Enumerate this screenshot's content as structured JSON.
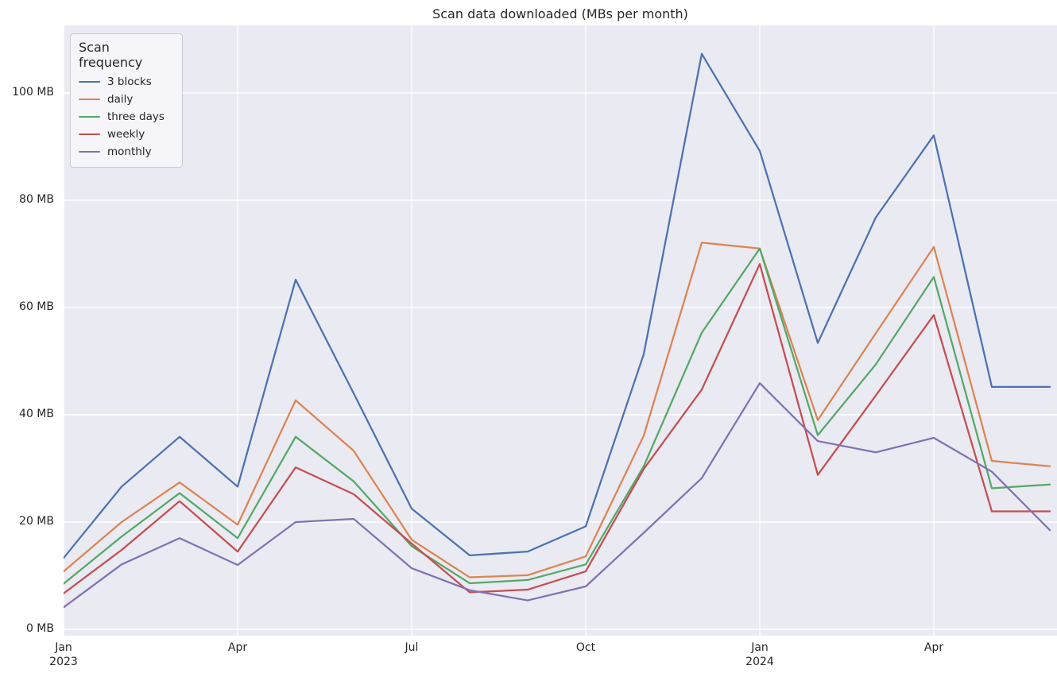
{
  "chart": {
    "title": "Scan data downloaded (MBs per month)",
    "legend_title": "Scan frequency",
    "y_ticks": [
      "0 MB",
      "20 MB",
      "40 MB",
      "60 MB",
      "80 MB",
      "100 MB"
    ]
  },
  "chart_data": {
    "type": "line",
    "title": "Scan data downloaded (MBs per month)",
    "xlabel": "",
    "ylabel": "",
    "x": [
      "2023-01",
      "2023-02",
      "2023-03",
      "2023-04",
      "2023-05",
      "2023-06",
      "2023-07",
      "2023-08",
      "2023-09",
      "2023-10",
      "2023-11",
      "2023-12",
      "2024-01",
      "2024-02",
      "2024-03",
      "2024-04",
      "2024-05",
      "2024-06"
    ],
    "series": [
      {
        "name": "3 blocks",
        "color": "#4c72b0",
        "values": [
          13.3,
          26.6,
          35.9,
          26.6,
          65.2,
          44.0,
          22.5,
          13.8,
          14.5,
          19.2,
          51.3,
          107.3,
          89.2,
          53.4,
          76.8,
          92.1,
          45.2,
          45.2
        ]
      },
      {
        "name": "daily",
        "color": "#dd8452",
        "values": [
          10.8,
          20.0,
          27.4,
          19.5,
          42.7,
          33.3,
          16.7,
          9.7,
          10.1,
          13.6,
          36.1,
          72.1,
          71.0,
          39.0,
          55.2,
          71.3,
          31.4,
          30.4
        ]
      },
      {
        "name": "three days",
        "color": "#55a868",
        "values": [
          8.5,
          17.3,
          25.4,
          17.0,
          35.9,
          27.6,
          15.5,
          8.6,
          9.2,
          12.1,
          30.4,
          55.3,
          71.0,
          36.2,
          49.4,
          65.7,
          26.3,
          27.0
        ]
      },
      {
        "name": "weekly",
        "color": "#c44e52",
        "values": [
          6.7,
          14.8,
          23.9,
          14.5,
          30.2,
          25.2,
          16.0,
          6.9,
          7.4,
          10.8,
          29.9,
          44.7,
          68.1,
          28.8,
          43.6,
          58.6,
          22.0,
          22.0
        ]
      },
      {
        "name": "monthly",
        "color": "#8172b3",
        "values": [
          4.1,
          12.1,
          17.0,
          12.0,
          20.0,
          20.6,
          11.4,
          7.3,
          5.4,
          8.0,
          18.0,
          28.2,
          45.9,
          35.1,
          33.0,
          35.7,
          29.4,
          18.5
        ]
      }
    ],
    "ylim": [
      -1.2,
      112.6
    ],
    "y_tick_values": [
      0,
      20,
      40,
      60,
      80,
      100
    ],
    "x_tick_positions": [
      0,
      3,
      6,
      9,
      12,
      15
    ],
    "x_tick_labels": [
      {
        "line1": "Jan",
        "line2": "2023"
      },
      {
        "line1": "Apr",
        "line2": ""
      },
      {
        "line1": "Jul",
        "line2": ""
      },
      {
        "line1": "Oct",
        "line2": ""
      },
      {
        "line1": "Jan",
        "line2": "2024"
      },
      {
        "line1": "Apr",
        "line2": ""
      }
    ],
    "grid": true,
    "legend_position": "upper-left",
    "plot_background": "#eaeaf2",
    "gridline_color": "#ffffff"
  }
}
